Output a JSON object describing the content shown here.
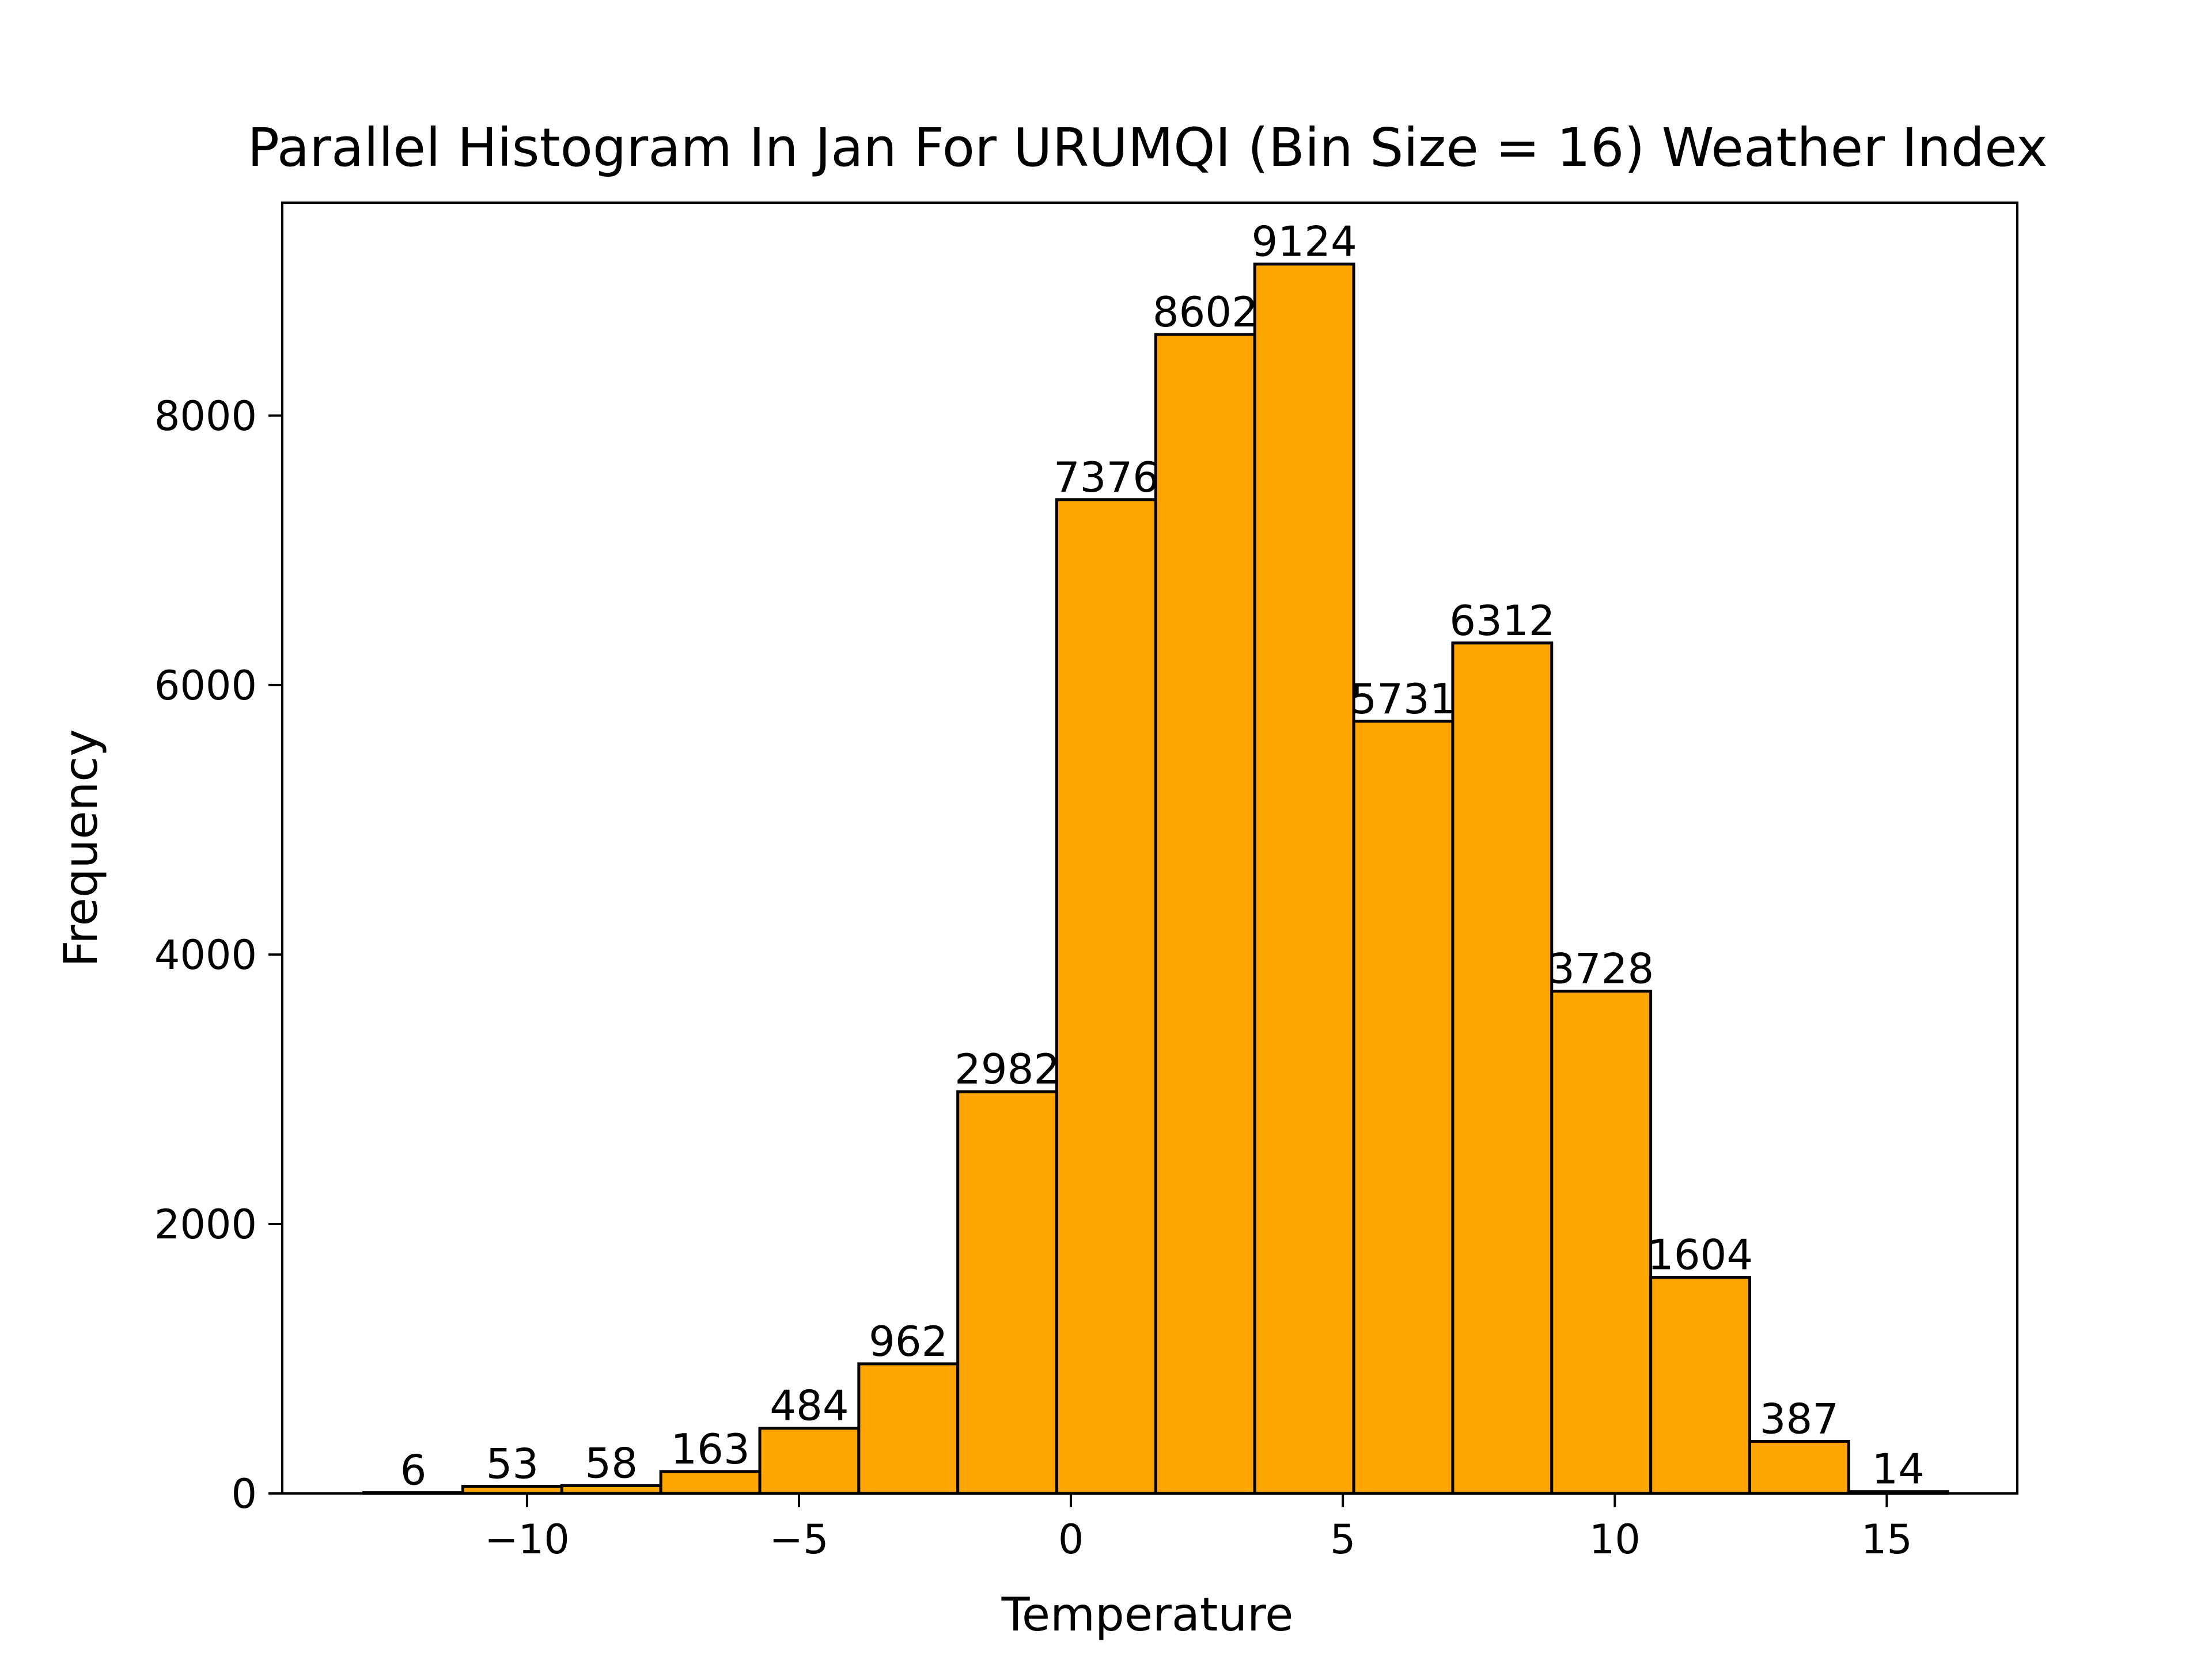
{
  "chart_data": {
    "type": "bar",
    "title": "Parallel Histogram In Jan For URUMQI (Bin Size = 16) Weather Index",
    "xlabel": "Temperature",
    "ylabel": "Frequency",
    "bin_edges": [
      -13.0,
      -11.18,
      -9.36,
      -7.54,
      -5.72,
      -3.9,
      -2.08,
      -0.26,
      1.56,
      3.38,
      5.2,
      7.02,
      8.84,
      10.66,
      12.48,
      14.3,
      16.12
    ],
    "values": [
      6,
      53,
      58,
      163,
      484,
      962,
      2982,
      7376,
      8602,
      9124,
      5731,
      6312,
      3728,
      1604,
      387,
      14
    ],
    "data_labels": [
      "6",
      "53",
      "58",
      "163",
      "484",
      "962",
      "2982",
      "7376",
      "8602",
      "9124",
      "5731",
      "6312",
      "3728",
      "1604",
      "387",
      "14"
    ],
    "xlim": [
      -14.5,
      17.4
    ],
    "ylim": [
      0,
      9580
    ],
    "x_ticks": [
      -10,
      -5,
      0,
      5,
      10,
      15
    ],
    "x_tick_labels": [
      "−10",
      "−5",
      "0",
      "5",
      "10",
      "15"
    ],
    "y_ticks": [
      0,
      2000,
      4000,
      6000,
      8000
    ],
    "y_tick_labels": [
      "0",
      "2000",
      "4000",
      "6000",
      "8000"
    ],
    "bar_color": "#FFA500",
    "edge_color": "#000000",
    "grid": false,
    "legend": "none"
  }
}
